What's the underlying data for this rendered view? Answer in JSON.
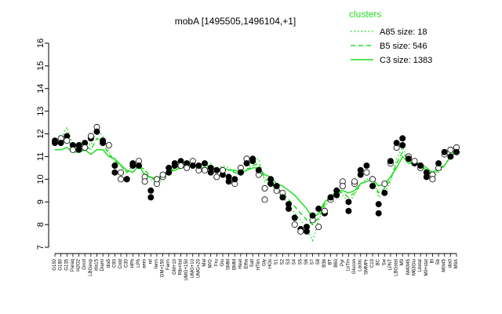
{
  "chart_data": {
    "type": "line",
    "title": "mobA [1495505,1496104,+1]",
    "xlabel": "",
    "ylabel": "",
    "ylim": [
      7,
      16
    ],
    "yticks": [
      7,
      8,
      9,
      10,
      11,
      12,
      13,
      14,
      15,
      16
    ],
    "legend": {
      "title": "clusters",
      "placement": "top-right",
      "color": "#22dd22",
      "entries": [
        {
          "label": "A85 size: 18",
          "style": "dotted"
        },
        {
          "label": "B5 size: 546",
          "style": "dashed"
        },
        {
          "label": "C3 size: 1383",
          "style": "solid"
        }
      ]
    },
    "x_labels": [
      "G150",
      "G180",
      "G135",
      "Paraq",
      "H2O2",
      "Oxctl",
      "LBGexp",
      "dia15",
      "Diami",
      "dia5",
      "C90",
      "Cold",
      "C30",
      "HPh",
      "LPh",
      "aero",
      "nit",
      "ferm",
      "GM+150",
      "Ferm",
      "GM+10",
      "Rib+Ital",
      "UMG+150",
      "UMG+10",
      "UMG+20",
      "Mal",
      "M/G",
      "Fru",
      "Glu",
      "SMM",
      "BMM",
      "Heat",
      "Etha",
      "Salt",
      "HTim",
      "Gly",
      "HOs",
      "S1",
      "S2",
      "S3",
      "S4",
      "S5",
      "S6",
      "S7",
      "S8",
      "B36",
      "BT",
      "B60",
      "Pyr",
      "LoTm",
      "Glucon",
      "Lactic",
      "SMMPr",
      "C19",
      "BC",
      "Sw",
      "LPhT",
      "LBGstat",
      "M9",
      "M40t45",
      "M63Glu",
      "Lbstat",
      "M9+stat",
      "Bl",
      "Sb",
      "M0t45",
      "dia0",
      "M9A"
    ],
    "series": [
      {
        "name": "C3 size: 1383",
        "style": "solid",
        "x": [
          0,
          1,
          2,
          3,
          4,
          5,
          6,
          7,
          8,
          9,
          10,
          11,
          12,
          13,
          14,
          15,
          16,
          17,
          18,
          19,
          20,
          21,
          22,
          23,
          24,
          25,
          26,
          27,
          28,
          29,
          30,
          31,
          32,
          33,
          34,
          35,
          36,
          37,
          38,
          39,
          40,
          41,
          42,
          43,
          44,
          45,
          46,
          47,
          48,
          49,
          50,
          51,
          52,
          53,
          54,
          55,
          56,
          57,
          58,
          59,
          60,
          61,
          62,
          63,
          64,
          65,
          66,
          67
        ],
        "values": [
          11.3,
          11.3,
          11.4,
          11.2,
          11.2,
          11.3,
          11.1,
          11.3,
          11.3,
          11.0,
          10.9,
          10.6,
          10.4,
          10.3,
          10.6,
          10.2,
          10.1,
          10.0,
          10.2,
          10.3,
          10.4,
          10.5,
          10.6,
          10.6,
          10.5,
          10.5,
          10.5,
          10.4,
          10.5,
          10.4,
          10.4,
          10.3,
          10.4,
          10.5,
          10.5,
          10.2,
          10.1,
          9.8,
          9.7,
          9.5,
          9.3,
          9.0,
          8.7,
          8.3,
          8.5,
          9.0,
          9.2,
          9.5,
          9.5,
          9.4,
          9.5,
          9.8,
          9.9,
          10.0,
          9.7,
          9.8,
          10.1,
          10.5,
          11.0,
          10.7,
          10.7,
          10.7,
          10.5,
          10.3,
          10.5,
          10.6,
          11.0,
          11.2
        ]
      },
      {
        "name": "B5 size: 546",
        "style": "dashed",
        "x": [
          0,
          1,
          2,
          3,
          4,
          5,
          6,
          7,
          8,
          9,
          10,
          11,
          12,
          13,
          14,
          15,
          16,
          17,
          18,
          19,
          20,
          21,
          22,
          23,
          24,
          25,
          26,
          27,
          28,
          29,
          30,
          31,
          32,
          33,
          34,
          35,
          36,
          37,
          38,
          39,
          40,
          41,
          42,
          43,
          44,
          45,
          46,
          47,
          48,
          49,
          50,
          51,
          52,
          53,
          54,
          55,
          56,
          57,
          58,
          59,
          60,
          61,
          62,
          63,
          64,
          65,
          66,
          67
        ],
        "values": [
          11.6,
          11.6,
          11.8,
          11.4,
          11.4,
          11.5,
          11.3,
          11.8,
          11.6,
          11.1,
          10.8,
          10.6,
          10.3,
          10.5,
          10.6,
          10.4,
          10.1,
          9.9,
          10.1,
          10.3,
          10.5,
          10.6,
          10.7,
          10.7,
          10.5,
          10.6,
          10.6,
          10.4,
          10.5,
          10.4,
          10.3,
          10.2,
          10.4,
          10.6,
          10.7,
          10.0,
          9.9,
          9.6,
          9.4,
          9.1,
          8.8,
          8.5,
          8.2,
          8.0,
          8.3,
          8.9,
          9.2,
          9.5,
          9.4,
          9.2,
          9.4,
          9.8,
          9.9,
          10.0,
          9.4,
          9.6,
          10.0,
          10.7,
          11.2,
          10.8,
          10.7,
          10.6,
          10.4,
          10.2,
          10.4,
          10.6,
          11.0,
          11.3
        ]
      },
      {
        "name": "A85 size: 18",
        "style": "dotted",
        "x": [
          0,
          1,
          2,
          3,
          4,
          5,
          6,
          7,
          8,
          9,
          10,
          11,
          12,
          13,
          14,
          15,
          16,
          17,
          18,
          19,
          20,
          21,
          22,
          23,
          24,
          25,
          26,
          27,
          28,
          29,
          30,
          31,
          32,
          33,
          34,
          35,
          36,
          37,
          38,
          39,
          40,
          41,
          42,
          43,
          44,
          45,
          46,
          47,
          48,
          49,
          50,
          51,
          52,
          53,
          54,
          55,
          56,
          57,
          58,
          59,
          60,
          61,
          62,
          63,
          64,
          65,
          66,
          67
        ],
        "values": [
          11.7,
          11.8,
          12.3,
          11.5,
          11.6,
          11.7,
          11.5,
          12.2,
          11.9,
          11.2,
          10.8,
          10.7,
          10.3,
          10.6,
          10.7,
          10.4,
          10.0,
          9.8,
          10.0,
          10.3,
          10.5,
          10.7,
          10.8,
          10.8,
          10.6,
          10.7,
          10.7,
          10.4,
          10.6,
          10.5,
          10.3,
          10.2,
          10.4,
          10.8,
          10.9,
          9.9,
          9.8,
          9.5,
          9.2,
          8.9,
          8.5,
          8.2,
          7.8,
          7.3,
          8.2,
          8.8,
          9.1,
          9.5,
          9.3,
          9.0,
          9.3,
          9.8,
          10.0,
          10.1,
          9.2,
          9.4,
          9.9,
          10.9,
          11.4,
          10.9,
          10.7,
          10.6,
          10.3,
          10.1,
          10.3,
          10.6,
          11.0,
          11.4
        ]
      }
    ],
    "points": [
      {
        "x": 0,
        "y": 11.7,
        "fill": "#000000"
      },
      {
        "x": 0,
        "y": 11.6,
        "fill": "#000000"
      },
      {
        "x": 1,
        "y": 11.8,
        "fill": "#ffffff"
      },
      {
        "x": 1,
        "y": 11.6,
        "fill": "#000000"
      },
      {
        "x": 2,
        "y": 11.9,
        "fill": "#000000"
      },
      {
        "x": 2,
        "y": 11.7,
        "fill": "#ffffff"
      },
      {
        "x": 3,
        "y": 11.5,
        "fill": "#000000"
      },
      {
        "x": 3,
        "y": 11.3,
        "fill": "#ffffff"
      },
      {
        "x": 4,
        "y": 11.5,
        "fill": "#000000"
      },
      {
        "x": 4,
        "y": 11.3,
        "fill": "#000000"
      },
      {
        "x": 5,
        "y": 11.6,
        "fill": "#000000"
      },
      {
        "x": 5,
        "y": 11.4,
        "fill": "#ffffff"
      },
      {
        "x": 6,
        "y": 11.8,
        "fill": "#000000"
      },
      {
        "x": 6,
        "y": 11.9,
        "fill": "#ffffff"
      },
      {
        "x": 7,
        "y": 12.3,
        "fill": "#ffffff"
      },
      {
        "x": 7,
        "y": 12.1,
        "fill": "#000000"
      },
      {
        "x": 8,
        "y": 11.6,
        "fill": "#000000"
      },
      {
        "x": 8,
        "y": 11.7,
        "fill": "#000000"
      },
      {
        "x": 9,
        "y": 11.5,
        "fill": "#ffffff"
      },
      {
        "x": 10,
        "y": 10.6,
        "fill": "#000000"
      },
      {
        "x": 10,
        "y": 10.3,
        "fill": "#000000"
      },
      {
        "x": 11,
        "y": 10.3,
        "fill": "#ffffff"
      },
      {
        "x": 11,
        "y": 10.0,
        "fill": "#ffffff"
      },
      {
        "x": 12,
        "y": 10.0,
        "fill": "#000000"
      },
      {
        "x": 12,
        "y": 10.0,
        "fill": "#000000"
      },
      {
        "x": 13,
        "y": 10.6,
        "fill": "#000000"
      },
      {
        "x": 13,
        "y": 10.7,
        "fill": "#000000"
      },
      {
        "x": 14,
        "y": 10.8,
        "fill": "#ffffff"
      },
      {
        "x": 14,
        "y": 10.6,
        "fill": "#000000"
      },
      {
        "x": 15,
        "y": 10.1,
        "fill": "#ffffff"
      },
      {
        "x": 15,
        "y": 9.9,
        "fill": "#ffffff"
      },
      {
        "x": 16,
        "y": 9.5,
        "fill": "#000000"
      },
      {
        "x": 16,
        "y": 9.2,
        "fill": "#000000"
      },
      {
        "x": 17,
        "y": 9.8,
        "fill": "#ffffff"
      },
      {
        "x": 17,
        "y": 10.0,
        "fill": "#ffffff"
      },
      {
        "x": 18,
        "y": 10.1,
        "fill": "#ffffff"
      },
      {
        "x": 18,
        "y": 10.2,
        "fill": "#ffffff"
      },
      {
        "x": 19,
        "y": 10.3,
        "fill": "#000000"
      },
      {
        "x": 19,
        "y": 10.5,
        "fill": "#000000"
      },
      {
        "x": 20,
        "y": 10.6,
        "fill": "#000000"
      },
      {
        "x": 20,
        "y": 10.7,
        "fill": "#000000"
      },
      {
        "x": 21,
        "y": 10.8,
        "fill": "#000000"
      },
      {
        "x": 21,
        "y": 10.6,
        "fill": "#ffffff"
      },
      {
        "x": 22,
        "y": 10.7,
        "fill": "#000000"
      },
      {
        "x": 22,
        "y": 10.5,
        "fill": "#ffffff"
      },
      {
        "x": 23,
        "y": 10.8,
        "fill": "#ffffff"
      },
      {
        "x": 23,
        "y": 10.6,
        "fill": "#000000"
      },
      {
        "x": 24,
        "y": 10.4,
        "fill": "#ffffff"
      },
      {
        "x": 24,
        "y": 10.6,
        "fill": "#000000"
      },
      {
        "x": 25,
        "y": 10.7,
        "fill": "#000000"
      },
      {
        "x": 25,
        "y": 10.4,
        "fill": "#ffffff"
      },
      {
        "x": 26,
        "y": 10.5,
        "fill": "#000000"
      },
      {
        "x": 26,
        "y": 10.3,
        "fill": "#000000"
      },
      {
        "x": 27,
        "y": 10.1,
        "fill": "#ffffff"
      },
      {
        "x": 27,
        "y": 10.4,
        "fill": "#000000"
      },
      {
        "x": 28,
        "y": 10.2,
        "fill": "#000000"
      },
      {
        "x": 28,
        "y": 10.4,
        "fill": "#ffffff"
      },
      {
        "x": 29,
        "y": 9.9,
        "fill": "#000000"
      },
      {
        "x": 29,
        "y": 10.1,
        "fill": "#000000"
      },
      {
        "x": 30,
        "y": 9.8,
        "fill": "#ffffff"
      },
      {
        "x": 30,
        "y": 10.0,
        "fill": "#000000"
      },
      {
        "x": 31,
        "y": 10.5,
        "fill": "#ffffff"
      },
      {
        "x": 31,
        "y": 10.3,
        "fill": "#000000"
      },
      {
        "x": 32,
        "y": 10.9,
        "fill": "#ffffff"
      },
      {
        "x": 32,
        "y": 10.7,
        "fill": "#000000"
      },
      {
        "x": 33,
        "y": 10.8,
        "fill": "#000000"
      },
      {
        "x": 33,
        "y": 10.9,
        "fill": "#000000"
      },
      {
        "x": 34,
        "y": 10.2,
        "fill": "#ffffff"
      },
      {
        "x": 34,
        "y": 10.4,
        "fill": "#000000"
      },
      {
        "x": 35,
        "y": 9.1,
        "fill": "#ffffff"
      },
      {
        "x": 35,
        "y": 9.6,
        "fill": "#ffffff"
      },
      {
        "x": 36,
        "y": 10.0,
        "fill": "#000000"
      },
      {
        "x": 36,
        "y": 9.8,
        "fill": "#000000"
      },
      {
        "x": 37,
        "y": 9.5,
        "fill": "#ffffff"
      },
      {
        "x": 37,
        "y": 9.7,
        "fill": "#000000"
      },
      {
        "x": 38,
        "y": 9.4,
        "fill": "#ffffff"
      },
      {
        "x": 38,
        "y": 9.2,
        "fill": "#000000"
      },
      {
        "x": 39,
        "y": 8.7,
        "fill": "#000000"
      },
      {
        "x": 39,
        "y": 8.9,
        "fill": "#000000"
      },
      {
        "x": 40,
        "y": 8.3,
        "fill": "#000000"
      },
      {
        "x": 40,
        "y": 8.0,
        "fill": "#ffffff"
      },
      {
        "x": 41,
        "y": 7.8,
        "fill": "#000000"
      },
      {
        "x": 41,
        "y": 7.7,
        "fill": "#ffffff"
      },
      {
        "x": 42,
        "y": 7.7,
        "fill": "#000000"
      },
      {
        "x": 42,
        "y": 7.9,
        "fill": "#000000"
      },
      {
        "x": 43,
        "y": 8.2,
        "fill": "#ffffff"
      },
      {
        "x": 43,
        "y": 8.4,
        "fill": "#000000"
      },
      {
        "x": 44,
        "y": 8.7,
        "fill": "#000000"
      },
      {
        "x": 44,
        "y": 7.9,
        "fill": "#ffffff"
      },
      {
        "x": 45,
        "y": 8.5,
        "fill": "#000000"
      },
      {
        "x": 45,
        "y": 8.6,
        "fill": "#ffffff"
      },
      {
        "x": 46,
        "y": 9.1,
        "fill": "#ffffff"
      },
      {
        "x": 46,
        "y": 9.2,
        "fill": "#000000"
      },
      {
        "x": 47,
        "y": 9.3,
        "fill": "#000000"
      },
      {
        "x": 47,
        "y": 9.5,
        "fill": "#000000"
      },
      {
        "x": 48,
        "y": 9.9,
        "fill": "#ffffff"
      },
      {
        "x": 48,
        "y": 9.7,
        "fill": "#ffffff"
      },
      {
        "x": 49,
        "y": 9.0,
        "fill": "#000000"
      },
      {
        "x": 49,
        "y": 8.6,
        "fill": "#000000"
      },
      {
        "x": 50,
        "y": 9.8,
        "fill": "#ffffff"
      },
      {
        "x": 50,
        "y": 9.9,
        "fill": "#ffffff"
      },
      {
        "x": 51,
        "y": 10.2,
        "fill": "#000000"
      },
      {
        "x": 51,
        "y": 10.4,
        "fill": "#000000"
      },
      {
        "x": 52,
        "y": 10.6,
        "fill": "#000000"
      },
      {
        "x": 52,
        "y": 10.3,
        "fill": "#ffffff"
      },
      {
        "x": 53,
        "y": 10.0,
        "fill": "#ffffff"
      },
      {
        "x": 53,
        "y": 9.7,
        "fill": "#000000"
      },
      {
        "x": 54,
        "y": 8.9,
        "fill": "#000000"
      },
      {
        "x": 54,
        "y": 8.5,
        "fill": "#000000"
      },
      {
        "x": 55,
        "y": 9.8,
        "fill": "#ffffff"
      },
      {
        "x": 55,
        "y": 9.4,
        "fill": "#000000"
      },
      {
        "x": 56,
        "y": 10.7,
        "fill": "#ffffff"
      },
      {
        "x": 56,
        "y": 10.8,
        "fill": "#000000"
      },
      {
        "x": 57,
        "y": 11.4,
        "fill": "#ffffff"
      },
      {
        "x": 57,
        "y": 11.6,
        "fill": "#000000"
      },
      {
        "x": 58,
        "y": 11.8,
        "fill": "#000000"
      },
      {
        "x": 58,
        "y": 11.5,
        "fill": "#000000"
      },
      {
        "x": 59,
        "y": 11.0,
        "fill": "#ffffff"
      },
      {
        "x": 59,
        "y": 10.9,
        "fill": "#000000"
      },
      {
        "x": 60,
        "y": 10.7,
        "fill": "#000000"
      },
      {
        "x": 60,
        "y": 10.8,
        "fill": "#ffffff"
      },
      {
        "x": 61,
        "y": 10.5,
        "fill": "#ffffff"
      },
      {
        "x": 61,
        "y": 10.6,
        "fill": "#000000"
      },
      {
        "x": 62,
        "y": 10.3,
        "fill": "#000000"
      },
      {
        "x": 62,
        "y": 10.1,
        "fill": "#000000"
      },
      {
        "x": 63,
        "y": 10.2,
        "fill": "#ffffff"
      },
      {
        "x": 63,
        "y": 10.0,
        "fill": "#ffffff"
      },
      {
        "x": 64,
        "y": 10.5,
        "fill": "#ffffff"
      },
      {
        "x": 64,
        "y": 10.7,
        "fill": "#000000"
      },
      {
        "x": 65,
        "y": 11.1,
        "fill": "#ffffff"
      },
      {
        "x": 65,
        "y": 11.2,
        "fill": "#000000"
      },
      {
        "x": 66,
        "y": 11.0,
        "fill": "#000000"
      },
      {
        "x": 66,
        "y": 11.3,
        "fill": "#ffffff"
      },
      {
        "x": 67,
        "y": 11.4,
        "fill": "#ffffff"
      },
      {
        "x": 67,
        "y": 11.2,
        "fill": "#000000"
      }
    ]
  }
}
